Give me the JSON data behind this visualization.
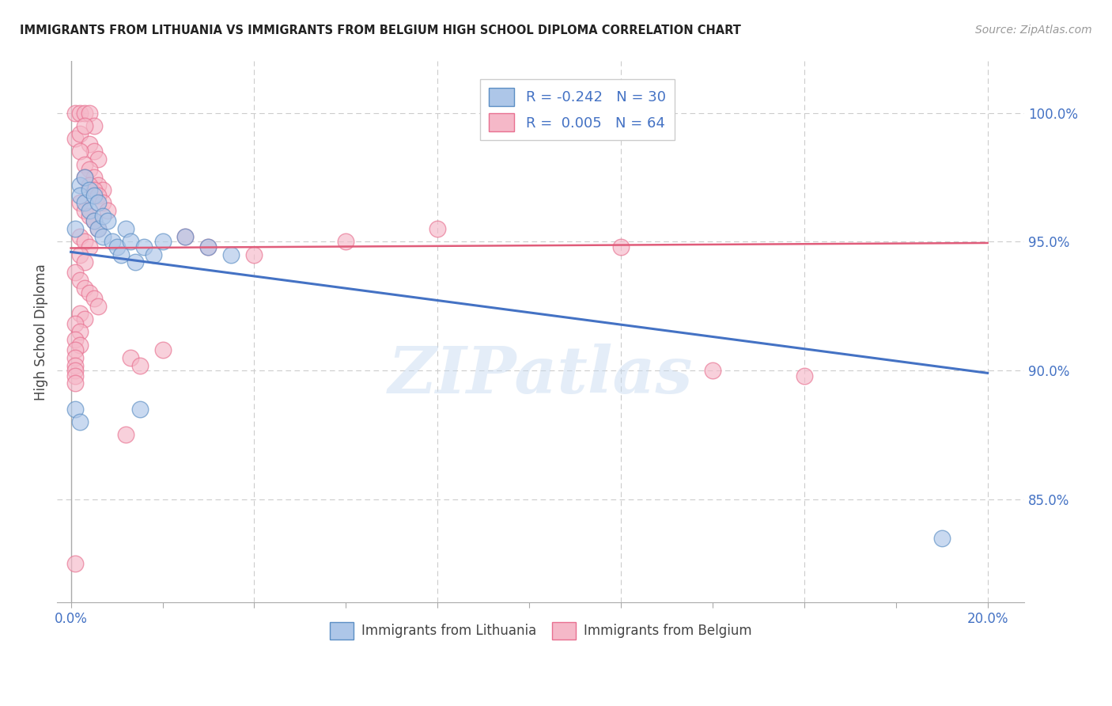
{
  "title": "IMMIGRANTS FROM LITHUANIA VS IMMIGRANTS FROM BELGIUM HIGH SCHOOL DIPLOMA CORRELATION CHART",
  "source": "Source: ZipAtlas.com",
  "ylabel": "High School Diploma",
  "xmin": -0.003,
  "xmax": 0.208,
  "ymin": 81.0,
  "ymax": 102.0,
  "legend_R1": "-0.242",
  "legend_N1": 30,
  "legend_R2": "0.005",
  "legend_N2": 64,
  "color_blue_fill": "#adc6e8",
  "color_pink_fill": "#f5b8c8",
  "color_blue_edge": "#5b8ec4",
  "color_pink_edge": "#e87090",
  "color_blue_line": "#4472c4",
  "color_pink_line": "#e05c7a",
  "watermark": "ZIPatlas",
  "blue_line_x": [
    0.0,
    0.2
  ],
  "blue_line_y": [
    94.6,
    89.9
  ],
  "pink_line_x": [
    0.0,
    0.2
  ],
  "pink_line_y": [
    94.75,
    94.95
  ],
  "blue_scatter": [
    [
      0.001,
      95.5
    ],
    [
      0.002,
      97.2
    ],
    [
      0.002,
      96.8
    ],
    [
      0.003,
      97.5
    ],
    [
      0.003,
      96.5
    ],
    [
      0.004,
      97.0
    ],
    [
      0.004,
      96.2
    ],
    [
      0.005,
      96.8
    ],
    [
      0.005,
      95.8
    ],
    [
      0.006,
      96.5
    ],
    [
      0.006,
      95.5
    ],
    [
      0.007,
      96.0
    ],
    [
      0.007,
      95.2
    ],
    [
      0.008,
      95.8
    ],
    [
      0.009,
      95.0
    ],
    [
      0.01,
      94.8
    ],
    [
      0.011,
      94.5
    ],
    [
      0.012,
      95.5
    ],
    [
      0.013,
      95.0
    ],
    [
      0.014,
      94.2
    ],
    [
      0.016,
      94.8
    ],
    [
      0.018,
      94.5
    ],
    [
      0.02,
      95.0
    ],
    [
      0.025,
      95.2
    ],
    [
      0.03,
      94.8
    ],
    [
      0.035,
      94.5
    ],
    [
      0.001,
      88.5
    ],
    [
      0.002,
      88.0
    ],
    [
      0.015,
      88.5
    ],
    [
      0.19,
      83.5
    ]
  ],
  "pink_scatter": [
    [
      0.001,
      100.0
    ],
    [
      0.002,
      100.0
    ],
    [
      0.003,
      100.0
    ],
    [
      0.004,
      100.0
    ],
    [
      0.005,
      99.5
    ],
    [
      0.001,
      99.0
    ],
    [
      0.002,
      99.2
    ],
    [
      0.003,
      99.5
    ],
    [
      0.004,
      98.8
    ],
    [
      0.005,
      98.5
    ],
    [
      0.006,
      98.2
    ],
    [
      0.002,
      98.5
    ],
    [
      0.003,
      98.0
    ],
    [
      0.004,
      97.8
    ],
    [
      0.005,
      97.5
    ],
    [
      0.006,
      97.2
    ],
    [
      0.007,
      97.0
    ],
    [
      0.003,
      97.5
    ],
    [
      0.004,
      97.2
    ],
    [
      0.005,
      97.0
    ],
    [
      0.006,
      96.8
    ],
    [
      0.007,
      96.5
    ],
    [
      0.008,
      96.2
    ],
    [
      0.002,
      96.5
    ],
    [
      0.003,
      96.2
    ],
    [
      0.004,
      96.0
    ],
    [
      0.005,
      95.8
    ],
    [
      0.006,
      95.5
    ],
    [
      0.002,
      95.2
    ],
    [
      0.003,
      95.0
    ],
    [
      0.004,
      94.8
    ],
    [
      0.002,
      94.5
    ],
    [
      0.003,
      94.2
    ],
    [
      0.001,
      93.8
    ],
    [
      0.002,
      93.5
    ],
    [
      0.003,
      93.2
    ],
    [
      0.004,
      93.0
    ],
    [
      0.005,
      92.8
    ],
    [
      0.006,
      92.5
    ],
    [
      0.002,
      92.2
    ],
    [
      0.003,
      92.0
    ],
    [
      0.001,
      91.8
    ],
    [
      0.002,
      91.5
    ],
    [
      0.001,
      91.2
    ],
    [
      0.002,
      91.0
    ],
    [
      0.001,
      90.8
    ],
    [
      0.001,
      90.5
    ],
    [
      0.001,
      90.2
    ],
    [
      0.001,
      90.0
    ],
    [
      0.001,
      89.8
    ],
    [
      0.001,
      89.5
    ],
    [
      0.013,
      90.5
    ],
    [
      0.015,
      90.2
    ],
    [
      0.02,
      90.8
    ],
    [
      0.025,
      95.2
    ],
    [
      0.03,
      94.8
    ],
    [
      0.04,
      94.5
    ],
    [
      0.06,
      95.0
    ],
    [
      0.08,
      95.5
    ],
    [
      0.12,
      94.8
    ],
    [
      0.14,
      90.0
    ],
    [
      0.16,
      89.8
    ],
    [
      0.001,
      82.5
    ],
    [
      0.012,
      87.5
    ]
  ]
}
